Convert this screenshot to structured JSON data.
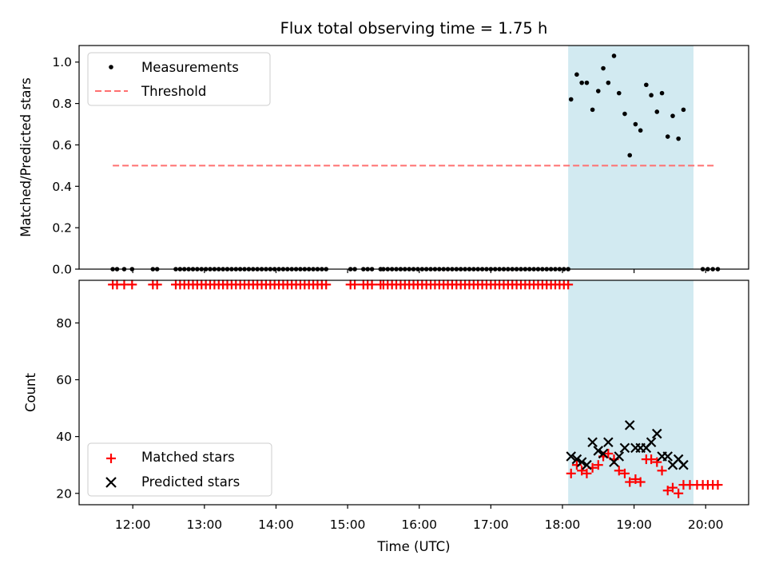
{
  "chart_data": {
    "title": "Flux total observing time = 1.75 h",
    "xlabel": "Time (UTC)",
    "x_unit": "hours UTC",
    "xlim": [
      11.25,
      20.6
    ],
    "x_ticks": [
      {
        "value": 12,
        "label": "12:00"
      },
      {
        "value": 13,
        "label": "13:00"
      },
      {
        "value": 14,
        "label": "14:00"
      },
      {
        "value": 15,
        "label": "15:00"
      },
      {
        "value": 16,
        "label": "16:00"
      },
      {
        "value": 17,
        "label": "17:00"
      },
      {
        "value": 18,
        "label": "18:00"
      },
      {
        "value": 19,
        "label": "19:00"
      },
      {
        "value": 20,
        "label": "20:00"
      }
    ],
    "observing_window": {
      "start": 18.08,
      "end": 19.83,
      "color": "#add8e6"
    },
    "panels": [
      {
        "type": "scatter",
        "ylabel": "Matched/Predicted stars",
        "ylim": [
          0.0,
          1.08
        ],
        "y_ticks": [
          {
            "value": 0.0,
            "label": "0.0"
          },
          {
            "value": 0.2,
            "label": "0.2"
          },
          {
            "value": 0.4,
            "label": "0.4"
          },
          {
            "value": 0.6,
            "label": "0.6"
          },
          {
            "value": 0.8,
            "label": "0.8"
          },
          {
            "value": 1.0,
            "label": "1.0"
          }
        ],
        "legend_position": "top-left",
        "legend": [
          {
            "label": "Measurements",
            "marker": "dot",
            "color": "#000000"
          },
          {
            "label": "Threshold",
            "marker": "dashed-line",
            "color": "#ff7070"
          }
        ],
        "threshold": {
          "y": 0.5,
          "x_from": 11.72,
          "x_to": 20.12,
          "color": "#ff7070"
        },
        "measurements": [
          [
            11.72,
            0.0
          ],
          [
            11.78,
            0.0
          ],
          [
            11.88,
            0.0
          ],
          [
            11.99,
            0.0
          ],
          [
            12.28,
            0.0
          ],
          [
            12.34,
            0.0
          ],
          [
            12.6,
            0.0
          ],
          [
            12.66,
            0.0
          ],
          [
            12.72,
            0.0
          ],
          [
            12.78,
            0.0
          ],
          [
            12.84,
            0.0
          ],
          [
            12.9,
            0.0
          ],
          [
            12.96,
            0.0
          ],
          [
            13.02,
            0.0
          ],
          [
            13.08,
            0.0
          ],
          [
            13.14,
            0.0
          ],
          [
            13.2,
            0.0
          ],
          [
            13.26,
            0.0
          ],
          [
            13.32,
            0.0
          ],
          [
            13.38,
            0.0
          ],
          [
            13.44,
            0.0
          ],
          [
            13.5,
            0.0
          ],
          [
            13.56,
            0.0
          ],
          [
            13.62,
            0.0
          ],
          [
            13.68,
            0.0
          ],
          [
            13.74,
            0.0
          ],
          [
            13.8,
            0.0
          ],
          [
            13.86,
            0.0
          ],
          [
            13.92,
            0.0
          ],
          [
            13.98,
            0.0
          ],
          [
            14.04,
            0.0
          ],
          [
            14.1,
            0.0
          ],
          [
            14.16,
            0.0
          ],
          [
            14.22,
            0.0
          ],
          [
            14.28,
            0.0
          ],
          [
            14.34,
            0.0
          ],
          [
            14.4,
            0.0
          ],
          [
            14.46,
            0.0
          ],
          [
            14.52,
            0.0
          ],
          [
            14.58,
            0.0
          ],
          [
            14.64,
            0.0
          ],
          [
            14.7,
            0.0
          ],
          [
            15.04,
            0.0
          ],
          [
            15.1,
            0.0
          ],
          [
            15.22,
            0.0
          ],
          [
            15.28,
            0.0
          ],
          [
            15.34,
            0.0
          ],
          [
            15.46,
            0.0
          ],
          [
            15.5,
            0.0
          ],
          [
            15.56,
            0.0
          ],
          [
            15.62,
            0.0
          ],
          [
            15.68,
            0.0
          ],
          [
            15.74,
            0.0
          ],
          [
            15.8,
            0.0
          ],
          [
            15.86,
            0.0
          ],
          [
            15.92,
            0.0
          ],
          [
            15.98,
            0.0
          ],
          [
            16.04,
            0.0
          ],
          [
            16.1,
            0.0
          ],
          [
            16.16,
            0.0
          ],
          [
            16.22,
            0.0
          ],
          [
            16.28,
            0.0
          ],
          [
            16.34,
            0.0
          ],
          [
            16.4,
            0.0
          ],
          [
            16.46,
            0.0
          ],
          [
            16.52,
            0.0
          ],
          [
            16.58,
            0.0
          ],
          [
            16.64,
            0.0
          ],
          [
            16.7,
            0.0
          ],
          [
            16.76,
            0.0
          ],
          [
            16.82,
            0.0
          ],
          [
            16.88,
            0.0
          ],
          [
            16.94,
            0.0
          ],
          [
            17.0,
            0.0
          ],
          [
            17.06,
            0.0
          ],
          [
            17.12,
            0.0
          ],
          [
            17.18,
            0.0
          ],
          [
            17.24,
            0.0
          ],
          [
            17.3,
            0.0
          ],
          [
            17.36,
            0.0
          ],
          [
            17.42,
            0.0
          ],
          [
            17.48,
            0.0
          ],
          [
            17.54,
            0.0
          ],
          [
            17.6,
            0.0
          ],
          [
            17.66,
            0.0
          ],
          [
            17.72,
            0.0
          ],
          [
            17.78,
            0.0
          ],
          [
            17.84,
            0.0
          ],
          [
            17.9,
            0.0
          ],
          [
            17.96,
            0.0
          ],
          [
            18.02,
            0.0
          ],
          [
            18.08,
            0.0
          ],
          [
            18.12,
            0.82
          ],
          [
            18.2,
            0.94
          ],
          [
            18.27,
            0.9
          ],
          [
            18.34,
            0.9
          ],
          [
            18.42,
            0.77
          ],
          [
            18.5,
            0.86
          ],
          [
            18.57,
            0.97
          ],
          [
            18.64,
            0.9
          ],
          [
            18.72,
            1.03
          ],
          [
            18.79,
            0.85
          ],
          [
            18.87,
            0.75
          ],
          [
            18.94,
            0.55
          ],
          [
            19.02,
            0.7
          ],
          [
            19.09,
            0.67
          ],
          [
            19.17,
            0.89
          ],
          [
            19.24,
            0.84
          ],
          [
            19.32,
            0.76
          ],
          [
            19.39,
            0.85
          ],
          [
            19.47,
            0.64
          ],
          [
            19.54,
            0.74
          ],
          [
            19.62,
            0.63
          ],
          [
            19.69,
            0.77
          ],
          [
            19.96,
            0.0
          ],
          [
            20.03,
            0.0
          ],
          [
            20.1,
            0.0
          ],
          [
            20.17,
            0.0
          ]
        ]
      },
      {
        "type": "scatter",
        "ylabel": "Count",
        "ylim": [
          16,
          95
        ],
        "y_ticks": [
          {
            "value": 20,
            "label": "20"
          },
          {
            "value": 40,
            "label": "40"
          },
          {
            "value": 60,
            "label": "60"
          },
          {
            "value": 80,
            "label": "80"
          }
        ],
        "legend_position": "bottom-left",
        "legend": [
          {
            "label": "Matched stars",
            "marker": "plus",
            "color": "#ff0000"
          },
          {
            "label": "Predicted stars",
            "marker": "x",
            "color": "#000000"
          }
        ],
        "matched_stars": [
          [
            11.72,
            93.5
          ],
          [
            11.78,
            93.5
          ],
          [
            11.88,
            93.5
          ],
          [
            11.99,
            93.5
          ],
          [
            12.28,
            93.5
          ],
          [
            12.34,
            93.5
          ],
          [
            12.6,
            93.5
          ],
          [
            12.66,
            93.5
          ],
          [
            12.72,
            93.5
          ],
          [
            12.78,
            93.5
          ],
          [
            12.84,
            93.5
          ],
          [
            12.9,
            93.5
          ],
          [
            12.96,
            93.5
          ],
          [
            13.02,
            93.5
          ],
          [
            13.08,
            93.5
          ],
          [
            13.14,
            93.5
          ],
          [
            13.2,
            93.5
          ],
          [
            13.26,
            93.5
          ],
          [
            13.32,
            93.5
          ],
          [
            13.38,
            93.5
          ],
          [
            13.44,
            93.5
          ],
          [
            13.5,
            93.5
          ],
          [
            13.56,
            93.5
          ],
          [
            13.62,
            93.5
          ],
          [
            13.68,
            93.5
          ],
          [
            13.74,
            93.5
          ],
          [
            13.8,
            93.5
          ],
          [
            13.86,
            93.5
          ],
          [
            13.92,
            93.5
          ],
          [
            13.98,
            93.5
          ],
          [
            14.04,
            93.5
          ],
          [
            14.1,
            93.5
          ],
          [
            14.16,
            93.5
          ],
          [
            14.22,
            93.5
          ],
          [
            14.28,
            93.5
          ],
          [
            14.34,
            93.5
          ],
          [
            14.4,
            93.5
          ],
          [
            14.46,
            93.5
          ],
          [
            14.52,
            93.5
          ],
          [
            14.58,
            93.5
          ],
          [
            14.64,
            93.5
          ],
          [
            14.7,
            93.5
          ],
          [
            15.04,
            93.5
          ],
          [
            15.1,
            93.5
          ],
          [
            15.22,
            93.5
          ],
          [
            15.28,
            93.5
          ],
          [
            15.34,
            93.5
          ],
          [
            15.46,
            93.5
          ],
          [
            15.5,
            93.5
          ],
          [
            15.56,
            93.5
          ],
          [
            15.62,
            93.5
          ],
          [
            15.68,
            93.5
          ],
          [
            15.74,
            93.5
          ],
          [
            15.8,
            93.5
          ],
          [
            15.86,
            93.5
          ],
          [
            15.92,
            93.5
          ],
          [
            15.98,
            93.5
          ],
          [
            16.04,
            93.5
          ],
          [
            16.1,
            93.5
          ],
          [
            16.16,
            93.5
          ],
          [
            16.22,
            93.5
          ],
          [
            16.28,
            93.5
          ],
          [
            16.34,
            93.5
          ],
          [
            16.4,
            93.5
          ],
          [
            16.46,
            93.5
          ],
          [
            16.52,
            93.5
          ],
          [
            16.58,
            93.5
          ],
          [
            16.64,
            93.5
          ],
          [
            16.7,
            93.5
          ],
          [
            16.76,
            93.5
          ],
          [
            16.82,
            93.5
          ],
          [
            16.88,
            93.5
          ],
          [
            16.94,
            93.5
          ],
          [
            17.0,
            93.5
          ],
          [
            17.06,
            93.5
          ],
          [
            17.12,
            93.5
          ],
          [
            17.18,
            93.5
          ],
          [
            17.24,
            93.5
          ],
          [
            17.3,
            93.5
          ],
          [
            17.36,
            93.5
          ],
          [
            17.42,
            93.5
          ],
          [
            17.48,
            93.5
          ],
          [
            17.54,
            93.5
          ],
          [
            17.6,
            93.5
          ],
          [
            17.66,
            93.5
          ],
          [
            17.72,
            93.5
          ],
          [
            17.78,
            93.5
          ],
          [
            17.84,
            93.5
          ],
          [
            17.9,
            93.5
          ],
          [
            17.96,
            93.5
          ],
          [
            18.02,
            93.5
          ],
          [
            18.08,
            93.5
          ],
          [
            18.12,
            27
          ],
          [
            18.2,
            30
          ],
          [
            18.27,
            28
          ],
          [
            18.34,
            27
          ],
          [
            18.42,
            29
          ],
          [
            18.5,
            30
          ],
          [
            18.57,
            33
          ],
          [
            18.64,
            34
          ],
          [
            18.72,
            32
          ],
          [
            18.79,
            28
          ],
          [
            18.87,
            27
          ],
          [
            18.94,
            24
          ],
          [
            19.02,
            25
          ],
          [
            19.09,
            24
          ],
          [
            19.17,
            32
          ],
          [
            19.24,
            32
          ],
          [
            19.32,
            31
          ],
          [
            19.39,
            28
          ],
          [
            19.47,
            21
          ],
          [
            19.54,
            22
          ],
          [
            19.62,
            20
          ],
          [
            19.69,
            23
          ],
          [
            19.78,
            23
          ],
          [
            19.88,
            23
          ],
          [
            19.96,
            23
          ],
          [
            20.03,
            23
          ],
          [
            20.1,
            23
          ],
          [
            20.17,
            23
          ]
        ],
        "predicted_stars": [
          [
            18.12,
            33
          ],
          [
            18.2,
            32
          ],
          [
            18.27,
            31
          ],
          [
            18.34,
            30
          ],
          [
            18.42,
            38
          ],
          [
            18.5,
            35
          ],
          [
            18.57,
            34
          ],
          [
            18.64,
            38
          ],
          [
            18.72,
            31
          ],
          [
            18.79,
            33
          ],
          [
            18.87,
            36
          ],
          [
            18.94,
            44
          ],
          [
            19.02,
            36
          ],
          [
            19.09,
            36
          ],
          [
            19.17,
            36
          ],
          [
            19.24,
            38
          ],
          [
            19.32,
            41
          ],
          [
            19.39,
            33
          ],
          [
            19.47,
            33
          ],
          [
            19.54,
            30
          ],
          [
            19.62,
            32
          ],
          [
            19.69,
            30
          ]
        ]
      }
    ]
  },
  "colors": {
    "measurements": "#000000",
    "threshold": "#ff7070",
    "matched": "#ff0000",
    "predicted": "#000000",
    "window": "#add8e6"
  }
}
